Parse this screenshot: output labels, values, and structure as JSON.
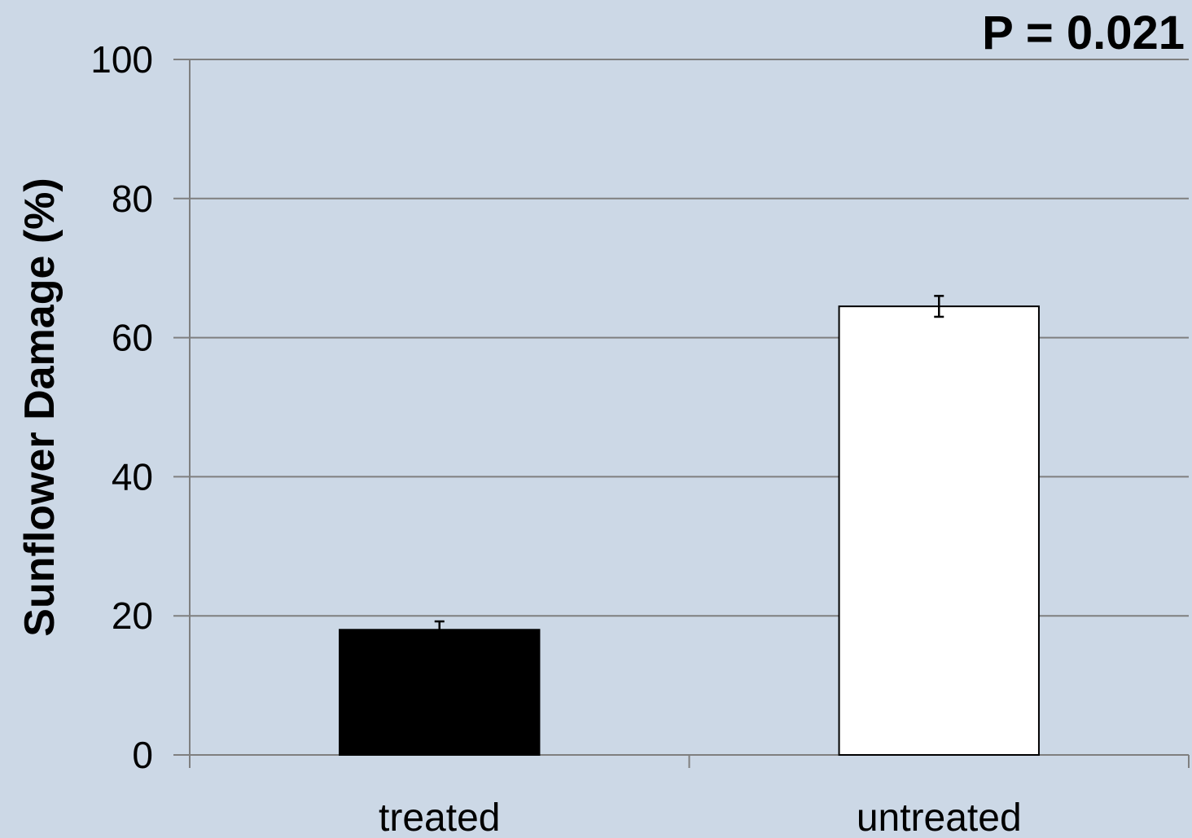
{
  "chart_data": {
    "type": "bar",
    "categories": [
      "treated",
      "untreated"
    ],
    "values": [
      18,
      64.5
    ],
    "errors": [
      1.2,
      1.5
    ],
    "bar_colors": [
      "#000000",
      "#ffffff"
    ],
    "title": "",
    "xlabel": "",
    "ylabel": "Sunflower Damage (%)",
    "ylim": [
      0,
      100
    ],
    "yticks": [
      0,
      20,
      40,
      60,
      80,
      100
    ],
    "grid": true,
    "annotation": "P = 0.021",
    "background": "#ccd8e6",
    "grid_color": "#7f7f7f"
  }
}
